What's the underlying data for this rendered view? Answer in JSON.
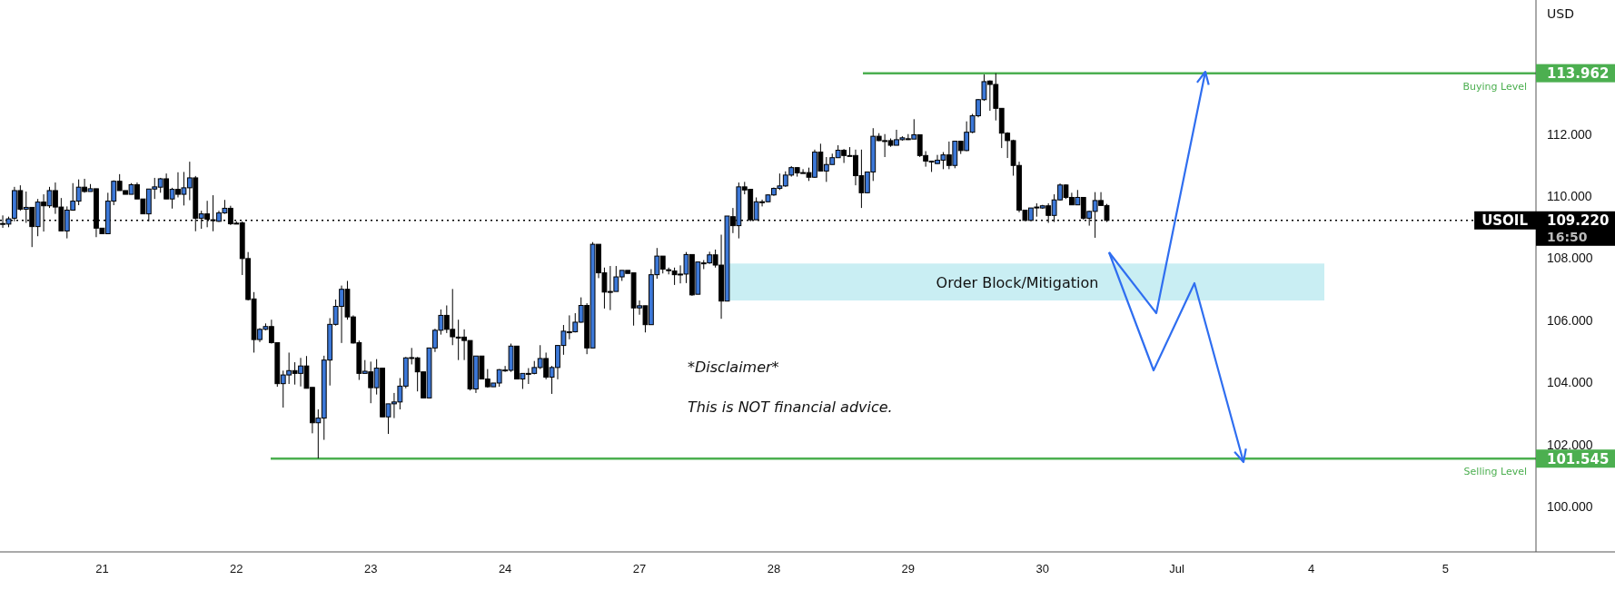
{
  "chart_data": {
    "type": "candlestick",
    "ylabel": "USD",
    "categories": [
      null,
      null,
      null,
      null,
      null,
      null,
      null,
      null,
      null,
      null,
      null,
      null,
      null,
      null,
      null,
      null,
      null,
      "21",
      null,
      null,
      null,
      null,
      null,
      null,
      null,
      null,
      null,
      null,
      null,
      null,
      null,
      null,
      null,
      null,
      null,
      null,
      null,
      null,
      null,
      null,
      "22",
      null,
      null,
      null,
      null,
      null,
      null,
      null,
      null,
      null,
      null,
      null,
      null,
      null,
      null,
      null,
      null,
      null,
      null,
      null,
      null,
      null,
      null,
      "23",
      null,
      null,
      null,
      null,
      null,
      null,
      null,
      null,
      null,
      null,
      null,
      null,
      null,
      null,
      null,
      null,
      null,
      null,
      null,
      null,
      null,
      null,
      "24",
      null,
      null,
      null,
      null,
      null,
      null,
      null,
      null,
      null,
      null,
      null,
      null,
      null,
      null,
      null,
      null,
      null,
      null,
      null,
      null,
      null,
      null,
      "27",
      null,
      null,
      null,
      null,
      null,
      null,
      null,
      null,
      null,
      null,
      null,
      null,
      null,
      null,
      null,
      null,
      null,
      null,
      null,
      null,
      null,
      null,
      "28",
      null,
      null,
      null,
      null,
      null,
      null,
      null,
      null,
      null,
      null,
      null,
      null,
      null,
      null,
      null,
      null,
      null,
      null,
      null,
      null,
      null,
      null,
      "29",
      null,
      null,
      null,
      null,
      null,
      null,
      null,
      null,
      null,
      null,
      null,
      null,
      null,
      null,
      null,
      null,
      null,
      null,
      null,
      null,
      null,
      null,
      "30",
      null,
      null,
      null,
      null,
      null,
      null,
      null,
      null,
      null,
      null,
      null,
      null,
      null,
      null,
      null,
      null,
      null,
      null,
      null,
      null,
      null,
      null,
      "Jul",
      null,
      null,
      null,
      null,
      null,
      null,
      null,
      null,
      null,
      null,
      null,
      null,
      null,
      null,
      null,
      null,
      null,
      null,
      null,
      null,
      null,
      null,
      "4",
      null,
      null,
      null,
      null,
      null,
      null,
      null,
      null,
      null,
      null,
      null,
      null,
      null,
      null,
      null,
      null,
      null,
      null,
      null,
      null,
      null,
      null,
      "5",
      null,
      null,
      null,
      null,
      null,
      null,
      null,
      null,
      null,
      null,
      null,
      null,
      null,
      null,
      null
    ],
    "ohlc": [
      [
        109.11,
        109.38,
        108.98,
        109.12
      ],
      [
        109.1,
        109.34,
        109.0,
        109.27
      ],
      [
        109.29,
        110.3,
        109.19,
        110.18
      ],
      [
        110.18,
        110.35,
        109.53,
        109.58
      ],
      [
        109.58,
        110.15,
        109.14,
        109.64
      ],
      [
        109.64,
        109.64,
        108.36,
        109.02
      ],
      [
        109.02,
        109.91,
        108.71,
        109.81
      ],
      [
        109.81,
        110.06,
        108.86,
        109.69
      ],
      [
        109.69,
        110.3,
        109.62,
        110.18
      ],
      [
        110.18,
        110.44,
        109.43,
        109.65
      ],
      [
        109.65,
        109.94,
        108.88,
        108.88
      ],
      [
        108.88,
        109.67,
        108.64,
        109.55
      ],
      [
        109.55,
        110.42,
        109.53,
        109.84
      ],
      [
        109.84,
        110.54,
        109.71,
        110.29
      ],
      [
        110.29,
        110.56,
        110.11,
        110.15
      ],
      [
        110.15,
        110.39,
        110.15,
        110.24
      ],
      [
        110.24,
        110.24,
        108.68,
        108.97
      ],
      [
        108.97,
        108.97,
        108.79,
        108.79
      ],
      [
        108.79,
        110.11,
        108.79,
        109.84
      ],
      [
        109.84,
        110.51,
        109.71,
        110.48
      ],
      [
        110.48,
        110.71,
        110.18,
        110.18
      ],
      [
        110.18,
        110.18,
        110.06,
        110.06
      ],
      [
        110.06,
        110.42,
        110.06,
        110.37
      ],
      [
        110.37,
        110.44,
        109.91,
        109.91
      ],
      [
        109.91,
        109.91,
        109.43,
        109.43
      ],
      [
        109.43,
        110.23,
        109.19,
        110.23
      ],
      [
        110.23,
        110.59,
        109.91,
        110.3
      ],
      [
        110.29,
        110.59,
        110.11,
        110.56
      ],
      [
        110.56,
        110.73,
        109.91,
        109.91
      ],
      [
        109.91,
        110.27,
        109.6,
        110.22
      ],
      [
        110.22,
        110.77,
        109.96,
        110.06
      ],
      [
        110.06,
        110.78,
        109.7,
        110.27
      ],
      [
        110.27,
        111.11,
        109.87,
        110.59
      ],
      [
        110.59,
        110.65,
        108.87,
        109.29
      ],
      [
        109.29,
        109.53,
        108.95,
        109.43
      ],
      [
        109.43,
        109.85,
        109.0,
        109.26
      ],
      [
        109.24,
        110.03,
        108.87,
        109.24
      ],
      [
        109.19,
        109.53,
        109.17,
        109.46
      ],
      [
        109.46,
        109.88,
        109.43,
        109.61
      ],
      [
        109.61,
        109.69,
        109.07,
        109.11
      ],
      [
        109.13,
        109.19,
        109.1,
        109.13
      ],
      [
        109.14,
        109.19,
        107.46,
        107.99
      ],
      [
        107.99,
        108.2,
        106.64,
        106.67
      ],
      [
        106.69,
        106.91,
        104.96,
        105.38
      ],
      [
        105.38,
        105.75,
        105.3,
        105.71
      ],
      [
        105.71,
        105.9,
        105.68,
        105.8
      ],
      [
        105.8,
        106.02,
        105.25,
        105.28
      ],
      [
        105.28,
        105.28,
        103.86,
        103.96
      ],
      [
        103.96,
        104.38,
        103.19,
        104.24
      ],
      [
        104.24,
        104.96,
        103.95,
        104.38
      ],
      [
        104.38,
        104.65,
        103.93,
        104.29
      ],
      [
        104.29,
        104.79,
        103.87,
        104.53
      ],
      [
        104.53,
        104.85,
        103.81,
        103.81
      ],
      [
        103.84,
        103.84,
        102.36,
        102.7
      ],
      [
        102.7,
        103.13,
        101.55,
        102.85
      ],
      [
        102.85,
        104.86,
        102.15,
        104.72
      ],
      [
        104.72,
        106.07,
        103.9,
        105.87
      ],
      [
        105.87,
        106.67,
        105.83,
        106.45
      ],
      [
        106.45,
        107.12,
        105.27,
        107.0
      ],
      [
        107.0,
        107.27,
        106.02,
        106.11
      ],
      [
        106.11,
        106.16,
        105.25,
        105.27
      ],
      [
        105.28,
        105.35,
        104.08,
        104.29
      ],
      [
        104.29,
        104.72,
        104.29,
        104.36
      ],
      [
        104.34,
        104.67,
        103.33,
        103.83
      ],
      [
        103.83,
        104.75,
        103.61,
        104.46
      ],
      [
        104.46,
        104.46,
        102.89,
        102.89
      ],
      [
        102.89,
        103.31,
        102.34,
        103.31
      ],
      [
        103.31,
        103.66,
        102.85,
        103.37
      ],
      [
        103.37,
        104.14,
        103.13,
        103.88
      ],
      [
        103.88,
        104.82,
        103.81,
        104.79
      ],
      [
        104.79,
        105.11,
        104.58,
        104.8
      ],
      [
        104.79,
        104.82,
        103.71,
        104.34
      ],
      [
        104.34,
        104.34,
        103.5,
        103.5
      ],
      [
        103.5,
        105.11,
        103.5,
        105.11
      ],
      [
        105.11,
        105.73,
        104.98,
        105.68
      ],
      [
        105.68,
        106.35,
        105.54,
        106.16
      ],
      [
        106.16,
        106.48,
        105.59,
        105.71
      ],
      [
        105.71,
        107.01,
        105.2,
        105.47
      ],
      [
        105.46,
        106.02,
        104.72,
        105.46
      ],
      [
        105.46,
        105.71,
        104.72,
        105.35
      ],
      [
        105.35,
        105.35,
        103.74,
        103.79
      ],
      [
        103.79,
        104.85,
        103.66,
        104.85
      ],
      [
        104.85,
        104.85,
        104.11,
        104.11
      ],
      [
        104.11,
        104.43,
        103.83,
        103.86
      ],
      [
        103.86,
        103.98,
        103.86,
        103.98
      ],
      [
        103.98,
        104.43,
        103.86,
        104.41
      ],
      [
        104.39,
        104.53,
        104.34,
        104.4
      ],
      [
        104.39,
        105.25,
        104.34,
        105.17
      ],
      [
        105.17,
        105.17,
        104.11,
        104.11
      ],
      [
        104.11,
        104.29,
        103.79,
        104.29
      ],
      [
        104.29,
        104.46,
        103.95,
        104.29
      ],
      [
        104.29,
        104.69,
        104.26,
        104.48
      ],
      [
        104.48,
        105.2,
        104.43,
        104.77
      ],
      [
        104.77,
        104.96,
        104.1,
        104.17
      ],
      [
        104.17,
        104.53,
        103.63,
        104.48
      ],
      [
        104.48,
        105.19,
        104.1,
        105.19
      ],
      [
        105.19,
        105.85,
        104.89,
        105.65
      ],
      [
        105.63,
        106.16,
        105.39,
        105.63
      ],
      [
        105.63,
        106.23,
        105.61,
        105.94
      ],
      [
        105.94,
        106.74,
        105.92,
        106.48
      ],
      [
        106.48,
        106.55,
        104.91,
        105.11
      ],
      [
        105.11,
        108.52,
        105.11,
        108.45
      ],
      [
        108.45,
        108.45,
        107.36,
        107.53
      ],
      [
        107.53,
        107.7,
        106.38,
        106.91
      ],
      [
        106.93,
        107.75,
        106.33,
        106.93
      ],
      [
        106.93,
        107.75,
        106.93,
        107.4
      ],
      [
        107.4,
        107.61,
        107.27,
        107.61
      ],
      [
        107.61,
        107.61,
        107.51,
        107.51
      ],
      [
        107.53,
        107.53,
        105.83,
        106.4
      ],
      [
        106.4,
        106.64,
        106.18,
        106.47
      ],
      [
        106.47,
        106.47,
        105.61,
        105.86
      ],
      [
        105.86,
        107.65,
        105.86,
        107.47
      ],
      [
        107.47,
        108.33,
        107.34,
        108.07
      ],
      [
        108.07,
        108.07,
        107.51,
        107.65
      ],
      [
        107.63,
        107.7,
        107.48,
        107.63
      ],
      [
        107.59,
        107.7,
        107.14,
        107.47
      ],
      [
        107.49,
        107.77,
        107.19,
        107.49
      ],
      [
        107.49,
        108.2,
        107.2,
        108.12
      ],
      [
        108.12,
        108.12,
        106.79,
        106.82
      ],
      [
        106.84,
        107.88,
        106.84,
        107.88
      ],
      [
        107.85,
        107.94,
        107.65,
        107.85
      ],
      [
        107.85,
        108.21,
        107.82,
        108.11
      ],
      [
        108.11,
        108.28,
        107.7,
        107.78
      ],
      [
        107.78,
        108.76,
        106.05,
        106.62
      ],
      [
        106.62,
        109.36,
        106.62,
        109.36
      ],
      [
        109.34,
        109.62,
        108.81,
        109.05
      ],
      [
        109.05,
        110.44,
        108.64,
        110.3
      ],
      [
        110.3,
        110.46,
        110.06,
        110.2
      ],
      [
        110.22,
        110.22,
        109.19,
        109.24
      ],
      [
        109.24,
        109.96,
        109.24,
        109.82
      ],
      [
        109.82,
        109.89,
        109.67,
        109.82
      ],
      [
        109.82,
        110.06,
        109.8,
        110.04
      ],
      [
        110.04,
        110.28,
        110.01,
        110.25
      ],
      [
        110.25,
        110.73,
        110.2,
        110.33
      ],
      [
        110.33,
        110.8,
        110.3,
        110.68
      ],
      [
        110.68,
        110.97,
        110.63,
        110.92
      ],
      [
        110.92,
        110.94,
        110.63,
        110.75
      ],
      [
        110.76,
        110.87,
        110.73,
        110.76
      ],
      [
        110.76,
        110.92,
        110.49,
        110.61
      ],
      [
        110.61,
        111.5,
        110.59,
        111.42
      ],
      [
        111.42,
        111.69,
        110.81,
        110.81
      ],
      [
        110.81,
        111.26,
        110.46,
        111.02
      ],
      [
        111.02,
        111.37,
        111.02,
        111.24
      ],
      [
        111.24,
        111.64,
        111.23,
        111.48
      ],
      [
        111.48,
        111.52,
        111.07,
        111.31
      ],
      [
        111.31,
        111.58,
        111.31,
        111.31
      ],
      [
        111.31,
        111.5,
        110.35,
        110.66
      ],
      [
        110.66,
        111.5,
        109.62,
        110.11
      ],
      [
        110.11,
        110.78,
        110.09,
        110.78
      ],
      [
        110.78,
        112.19,
        110.49,
        111.93
      ],
      [
        111.93,
        112.03,
        111.77,
        111.79
      ],
      [
        111.79,
        112.0,
        111.26,
        111.79
      ],
      [
        111.79,
        111.86,
        111.59,
        111.64
      ],
      [
        111.64,
        112.14,
        111.64,
        111.82
      ],
      [
        111.82,
        111.93,
        111.79,
        111.88
      ],
      [
        111.85,
        112.0,
        111.81,
        111.85
      ],
      [
        111.84,
        112.48,
        111.84,
        111.98
      ],
      [
        111.98,
        111.98,
        111.26,
        111.31
      ],
      [
        111.31,
        111.45,
        110.95,
        111.13
      ],
      [
        111.13,
        111.14,
        110.78,
        111.1
      ],
      [
        111.05,
        111.33,
        111.04,
        111.16
      ],
      [
        111.16,
        111.42,
        110.87,
        111.33
      ],
      [
        111.33,
        111.76,
        110.87,
        110.99
      ],
      [
        110.99,
        111.77,
        110.9,
        111.77
      ],
      [
        111.77,
        111.77,
        111.36,
        111.47
      ],
      [
        111.47,
        112.41,
        111.45,
        112.06
      ],
      [
        112.06,
        112.65,
        112.03,
        112.59
      ],
      [
        112.59,
        113.13,
        112.54,
        113.11
      ],
      [
        113.11,
        113.92,
        113.07,
        113.69
      ],
      [
        113.71,
        113.73,
        112.75,
        113.6
      ],
      [
        113.6,
        113.96,
        112.44,
        112.83
      ],
      [
        112.83,
        112.83,
        111.55,
        112.03
      ],
      [
        112.03,
        112.06,
        111.23,
        111.79
      ],
      [
        111.79,
        111.82,
        110.66,
        110.99
      ],
      [
        110.99,
        111.11,
        109.48,
        109.55
      ],
      [
        109.55,
        109.55,
        109.22,
        109.22
      ],
      [
        109.22,
        109.62,
        109.22,
        109.62
      ],
      [
        109.65,
        109.77,
        109.34,
        109.65
      ],
      [
        109.62,
        109.72,
        109.59,
        109.69
      ],
      [
        109.69,
        109.77,
        109.14,
        109.38
      ],
      [
        109.38,
        110.06,
        109.17,
        109.88
      ],
      [
        109.88,
        110.41,
        109.86,
        110.36
      ],
      [
        110.36,
        110.38,
        109.91,
        109.96
      ],
      [
        109.96,
        110.11,
        109.72,
        109.72
      ],
      [
        109.72,
        110.2,
        109.72,
        109.96
      ],
      [
        109.96,
        109.96,
        109.24,
        109.29
      ],
      [
        109.29,
        109.53,
        109.05,
        109.51
      ],
      [
        109.51,
        110.13,
        108.66,
        109.86
      ],
      [
        109.86,
        110.13,
        109.7,
        109.7
      ],
      [
        109.7,
        109.75,
        109.17,
        109.22
      ],
      null,
      null,
      null,
      null,
      null,
      null,
      null,
      null,
      null,
      null,
      null,
      null,
      null,
      null,
      null,
      null,
      null,
      null,
      null,
      null,
      null,
      null,
      null,
      null,
      null,
      null,
      null,
      null,
      null,
      null,
      null,
      null,
      null,
      null,
      null,
      null,
      null,
      null,
      null,
      null,
      null,
      null,
      null,
      null,
      null,
      null,
      null,
      null,
      null,
      null,
      null,
      null,
      null,
      null,
      null,
      null,
      null,
      null,
      null,
      null,
      null,
      null,
      null,
      null,
      null,
      null,
      null,
      null,
      null,
      null,
      null,
      null,
      null
    ],
    "colors": [
      "#3c78d8",
      "#3c78d8",
      "#3c78d8",
      "#000000",
      "#3c78d8",
      "#000000",
      "#3c78d8",
      "#000000",
      "#3c78d8",
      "#000000",
      "#000000",
      "#3c78d8",
      "#3c78d8",
      "#3c78d8",
      "#000000",
      "#3c78d8",
      "#000000",
      "#000000",
      "#3c78d8",
      "#3c78d8",
      "#000000",
      "#000000",
      "#3c78d8",
      "#000000",
      "#000000",
      "#3c78d8",
      "#3c78d8",
      "#3c78d8",
      "#000000",
      "#3c78d8",
      "#000000",
      "#3c78d8",
      "#3c78d8",
      "#000000",
      "#3c78d8",
      "#000000",
      "#000000",
      "#3c78d8",
      "#3c78d8",
      "#000000",
      "#000000",
      "#000000",
      "#000000",
      "#000000",
      "#3c78d8",
      "#3c78d8",
      "#000000",
      "#000000",
      "#3c78d8",
      "#3c78d8",
      "#000000",
      "#3c78d8",
      "#000000",
      "#000000",
      "#3c78d8",
      "#3c78d8",
      "#3c78d8",
      "#3c78d8",
      "#3c78d8",
      "#000000",
      "#000000",
      "#000000",
      "#3c78d8",
      "#000000",
      "#3c78d8",
      "#000000",
      "#3c78d8",
      "#3c78d8",
      "#3c78d8",
      "#3c78d8",
      "#3c78d8",
      "#000000",
      "#000000",
      "#3c78d8",
      "#3c78d8",
      "#3c78d8",
      "#000000",
      "#000000",
      "#000000",
      "#000000",
      "#000000",
      "#3c78d8",
      "#000000",
      "#000000",
      "#3c78d8",
      "#3c78d8",
      "#3c78d8",
      "#3c78d8",
      "#000000",
      "#3c78d8",
      "#000000",
      "#3c78d8",
      "#3c78d8",
      "#000000",
      "#3c78d8",
      "#3c78d8",
      "#3c78d8",
      "#000000",
      "#3c78d8",
      "#3c78d8",
      "#000000",
      "#3c78d8",
      "#000000",
      "#000000",
      "#000000",
      "#3c78d8",
      "#3c78d8",
      "#000000",
      "#000000",
      "#3c78d8",
      "#000000",
      "#3c78d8",
      "#3c78d8",
      "#000000",
      "#000000",
      "#000000",
      "#000000",
      "#3c78d8",
      "#000000",
      "#3c78d8",
      "#000000",
      "#3c78d8",
      "#000000",
      "#000000",
      "#3c78d8",
      "#000000",
      "#3c78d8",
      "#000000",
      "#000000",
      "#3c78d8",
      "#000000",
      "#3c78d8",
      "#3c78d8",
      "#3c78d8",
      "#3c78d8",
      "#3c78d8",
      "#000000",
      "#000000",
      "#000000",
      "#3c78d8",
      "#000000",
      "#3c78d8",
      "#3c78d8",
      "#3c78d8",
      "#000000",
      "#000000",
      "#000000",
      "#000000",
      "#3c78d8",
      "#3c78d8",
      "#000000",
      "#000000",
      "#000000",
      "#3c78d8",
      "#3c78d8",
      "#000000",
      "#3c78d8",
      "#000000",
      "#000000",
      "#000000",
      "#3c78d8",
      "#3c78d8",
      "#000000",
      "#3c78d8",
      "#000000",
      "#3c78d8",
      "#3c78d8",
      "#3c78d8",
      "#3c78d8",
      "#000000",
      "#000000",
      "#000000",
      "#000000",
      "#000000",
      "#000000",
      "#000000",
      "#3c78d8",
      "#000000",
      "#3c78d8",
      "#000000",
      "#3c78d8",
      "#3c78d8",
      "#000000",
      "#000000",
      "#3c78d8",
      "#000000",
      "#3c78d8",
      "#3c78d8",
      "#000000",
      "#000000",
      null,
      null,
      null,
      null,
      null,
      null,
      null,
      null,
      null,
      null,
      null,
      null,
      null,
      null,
      null,
      null,
      null,
      null,
      null,
      null,
      null,
      null,
      null,
      null,
      null,
      null,
      null,
      null,
      null,
      null,
      null,
      null,
      null,
      null,
      null,
      null,
      null,
      null,
      null,
      null,
      null,
      null,
      null,
      null,
      null,
      null,
      null,
      null,
      null,
      null,
      null,
      null,
      null,
      null,
      null,
      null,
      null,
      null,
      null,
      null,
      null,
      null,
      null,
      null,
      null,
      null,
      null,
      null,
      null,
      null,
      null,
      null,
      null
    ],
    "ylim": [
      98.54,
      116.32
    ],
    "yticks": [
      {
        "value": 100,
        "label": "100.000"
      },
      {
        "value": 102,
        "label": "102.000"
      },
      {
        "value": 104,
        "label": "104.000"
      },
      {
        "value": 106,
        "label": "106.000"
      },
      {
        "value": 108,
        "label": "108.000"
      },
      {
        "value": 110,
        "label": "110.000"
      },
      {
        "value": 112,
        "label": "112.000"
      }
    ],
    "ref_lines": [
      {
        "axis": "y",
        "value": 113.962,
        "label": "Buying Level",
        "color": "#4caf50",
        "line_style": "solid"
      },
      {
        "axis": "y",
        "value": 101.545,
        "label": "Selling Level",
        "color": "#4caf50",
        "line_style": "solid"
      },
      {
        "axis": "y",
        "value": 109.22,
        "label": "USOIL",
        "color": "#000000",
        "line_style": "dotted"
      }
    ],
    "bands": [
      {
        "axis": "y",
        "from": 106.64,
        "to": 107.83,
        "label": "Order Block/Mitigation",
        "color": "#c9eef3"
      }
    ],
    "annotations": [
      "*Disclaimer*",
      "This is NOT financial advice.",
      "16:50",
      "113.962",
      "101.545",
      "109.220"
    ],
    "grid": false
  }
}
